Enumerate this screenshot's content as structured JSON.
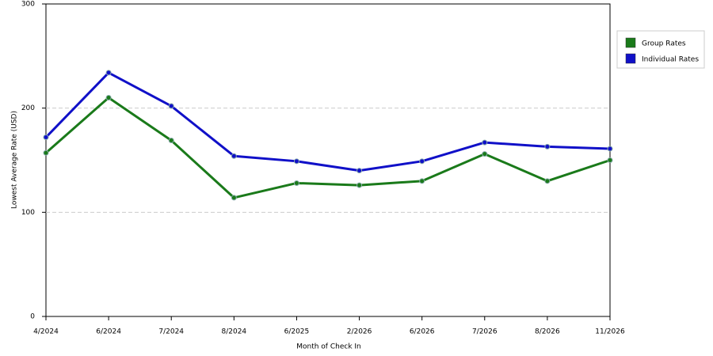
{
  "chart_data": {
    "type": "line",
    "x_label": "Month of Check In",
    "y_label": "Lowest Average Rate (USD)",
    "categories": [
      "4/2024",
      "6/2024",
      "7/2024",
      "8/2024",
      "6/2025",
      "2/2026",
      "6/2026",
      "7/2026",
      "8/2026",
      "11/2026"
    ],
    "series": [
      {
        "name": "Group Rates",
        "color": "#1a7a1a",
        "values": [
          157,
          210,
          169,
          114,
          128,
          126,
          130,
          156,
          130,
          150
        ]
      },
      {
        "name": "Individual Rates",
        "color": "#1010c8",
        "values": [
          172,
          234,
          202,
          154,
          149,
          140,
          149,
          167,
          163,
          161
        ]
      }
    ],
    "ylim": [
      0,
      300
    ],
    "yticks": [
      0,
      100,
      200,
      300
    ],
    "grid": true,
    "legend": "right"
  }
}
